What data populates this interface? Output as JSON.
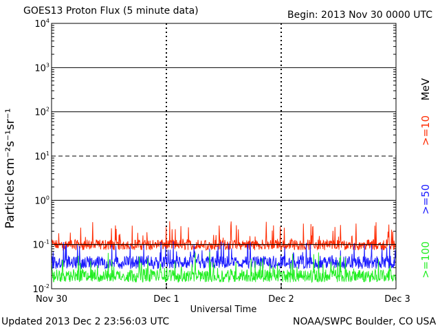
{
  "header": {
    "title": "GOES13 Proton Flux (5 minute data)",
    "begin": "Begin:  2013 Nov 30 0000 UTC"
  },
  "footer": {
    "updated": "Updated 2013 Dec  2 23:56:03 UTC",
    "credit": "NOAA/SWPC Boulder, CO USA"
  },
  "chart_data": {
    "type": "line",
    "title": "GOES13 Proton Flux (5 minute data)",
    "xlabel": "Universal Time",
    "ylabel": "Particles cm⁻²s⁻¹sr⁻¹",
    "yscale": "log",
    "ylim": [
      0.01,
      10000
    ],
    "xlim": [
      "2013-11-30 00:00",
      "2013-12-03 00:00"
    ],
    "x_ticks": [
      "Nov 30",
      "Dec 1",
      "Dec 2",
      "Dec 3"
    ],
    "y_ticks": [
      {
        "base": "10",
        "exp": "4"
      },
      {
        "base": "10",
        "exp": "3"
      },
      {
        "base": "10",
        "exp": "2"
      },
      {
        "base": "10",
        "exp": "1"
      },
      {
        "base": "10",
        "exp": "0"
      },
      {
        "base": "10",
        "exp": "-1"
      },
      {
        "base": "10",
        "exp": "-2"
      }
    ],
    "unit_label": "MeV",
    "series": [
      {
        "name": ">=10",
        "color": "#ff2a00",
        "typical": 0.1,
        "min": 0.075,
        "max": 0.35
      },
      {
        "name": ">=50",
        "color": "#1a1aff",
        "typical": 0.04,
        "min": 0.028,
        "max": 0.12
      },
      {
        "name": ">=100",
        "color": "#22ee22",
        "typical": 0.02,
        "min": 0.014,
        "max": 0.07
      }
    ],
    "threshold_lines": [
      10,
      0.1
    ],
    "grid": "horizontal solid lines at decades, dashed at 10, dashed vertical day markers"
  }
}
